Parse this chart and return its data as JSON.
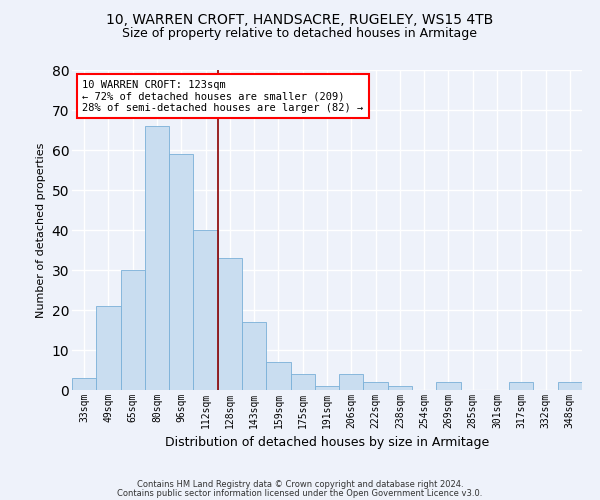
{
  "title": "10, WARREN CROFT, HANDSACRE, RUGELEY, WS15 4TB",
  "subtitle": "Size of property relative to detached houses in Armitage",
  "xlabel": "Distribution of detached houses by size in Armitage",
  "ylabel": "Number of detached properties",
  "bar_color": "#c9ddf0",
  "bar_edge_color": "#7ab0d8",
  "categories": [
    "33sqm",
    "49sqm",
    "65sqm",
    "80sqm",
    "96sqm",
    "112sqm",
    "128sqm",
    "143sqm",
    "159sqm",
    "175sqm",
    "191sqm",
    "206sqm",
    "222sqm",
    "238sqm",
    "254sqm",
    "269sqm",
    "285sqm",
    "301sqm",
    "317sqm",
    "332sqm",
    "348sqm"
  ],
  "values": [
    3,
    21,
    30,
    66,
    59,
    40,
    33,
    17,
    7,
    4,
    1,
    4,
    2,
    1,
    0,
    2,
    0,
    0,
    2,
    0,
    2
  ],
  "vline_x": 5.5,
  "annotation_line1": "10 WARREN CROFT: 123sqm",
  "annotation_line2": "← 72% of detached houses are smaller (209)",
  "annotation_line3": "28% of semi-detached houses are larger (82) →",
  "ylim": [
    0,
    80
  ],
  "yticks": [
    0,
    10,
    20,
    30,
    40,
    50,
    60,
    70,
    80
  ],
  "footer1": "Contains HM Land Registry data © Crown copyright and database right 2024.",
  "footer2": "Contains public sector information licensed under the Open Government Licence v3.0.",
  "background_color": "#eef2fa",
  "grid_color": "#ffffff",
  "vline_color": "#8b0000",
  "title_fontsize": 10,
  "subtitle_fontsize": 9,
  "ylabel_fontsize": 8,
  "xlabel_fontsize": 9,
  "tick_fontsize": 7,
  "annotation_fontsize": 7.5,
  "footer_fontsize": 6
}
